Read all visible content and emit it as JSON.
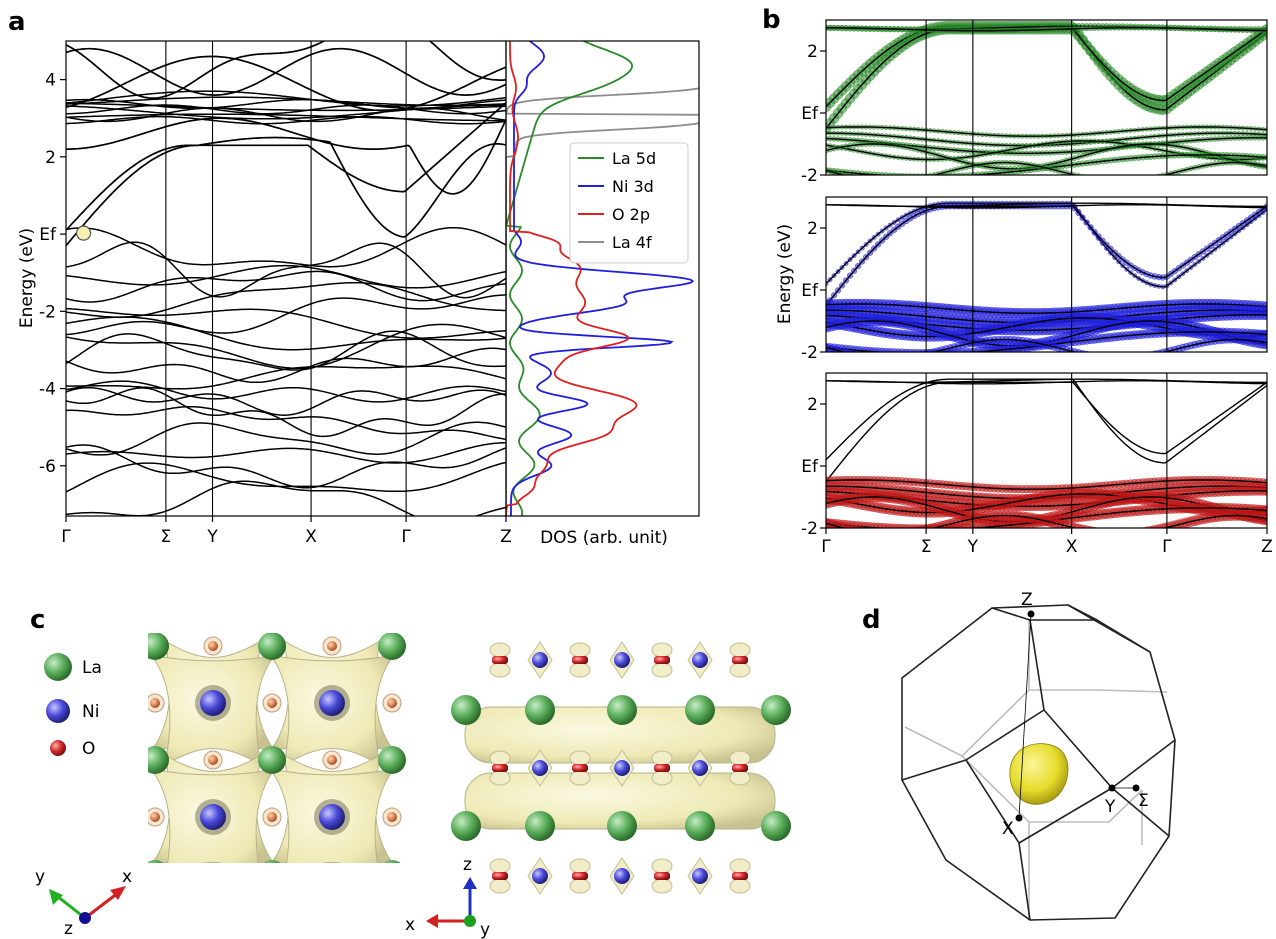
{
  "panels": {
    "a": "a",
    "b": "b",
    "c": "c",
    "d": "d"
  },
  "colors": {
    "la5d": "#2a8a2a",
    "ni3d": "#1f1fdd",
    "o2p": "#e02020",
    "la4f": "#8c8c8c",
    "la_atom": "#5cae5c",
    "ni_atom": "#4a4ad8",
    "o_atom": "#d42a2a",
    "isosurface": "#f4f0c0",
    "fermi_surface": "#e6dc2a"
  },
  "chart_data": [
    {
      "id": "a-bands",
      "type": "line",
      "ylabel": "Energy (eV)",
      "ylim": [
        -7.3,
        5.0
      ],
      "y_ticks": [
        {
          "v": 4,
          "label": "4"
        },
        {
          "v": 2,
          "label": "2"
        },
        {
          "v": 0,
          "label": "Ef"
        },
        {
          "v": -2,
          "label": "-2"
        },
        {
          "v": -4,
          "label": "-4"
        },
        {
          "v": -6,
          "label": "-6"
        }
      ],
      "k_labels": [
        "Γ",
        "Σ",
        "Y",
        "X",
        "Γ",
        "Z"
      ],
      "k_positions": [
        0,
        0.227,
        0.333,
        0.557,
        0.773,
        1.0
      ],
      "highlight_point": {
        "x": 0.04,
        "y": 0.0
      }
    },
    {
      "id": "a-dos",
      "type": "line",
      "xlabel": "DOS (arb. unit)",
      "legend": "top-right",
      "series": [
        {
          "name": "La 5d",
          "color_key": "la5d"
        },
        {
          "name": "Ni 3d",
          "color_key": "ni3d"
        },
        {
          "name": "O 2p",
          "color_key": "o2p"
        },
        {
          "name": "La 4f",
          "color_key": "la4f"
        }
      ]
    },
    {
      "id": "b-fatbands",
      "type": "line",
      "ylabel": "Energy (eV)",
      "ylim": [
        -2,
        3.0
      ],
      "y_ticks": [
        {
          "v": 2,
          "label": "2"
        },
        {
          "v": 0,
          "label": "Ef"
        },
        {
          "v": -2,
          "label": "-2"
        }
      ],
      "k_labels": [
        "Γ",
        "Σ",
        "Y",
        "X",
        "Γ",
        "Z"
      ],
      "k_positions": [
        0,
        0.227,
        0.333,
        0.557,
        0.773,
        1.0
      ],
      "subpanels": [
        "La 5d",
        "Ni 3d",
        "O 2p"
      ]
    }
  ],
  "panel_c": {
    "legend": [
      {
        "label": "La",
        "color_key": "la_atom"
      },
      {
        "label": "Ni",
        "color_key": "ni_atom"
      },
      {
        "label": "O",
        "color_key": "o_atom"
      }
    ],
    "axes_left": {
      "x": "x",
      "y": "y",
      "z": "z"
    },
    "axes_right": {
      "x": "x",
      "y": "y",
      "z": "z"
    }
  },
  "panel_d": {
    "points": [
      "Z",
      "X",
      "Y",
      "Σ"
    ]
  }
}
